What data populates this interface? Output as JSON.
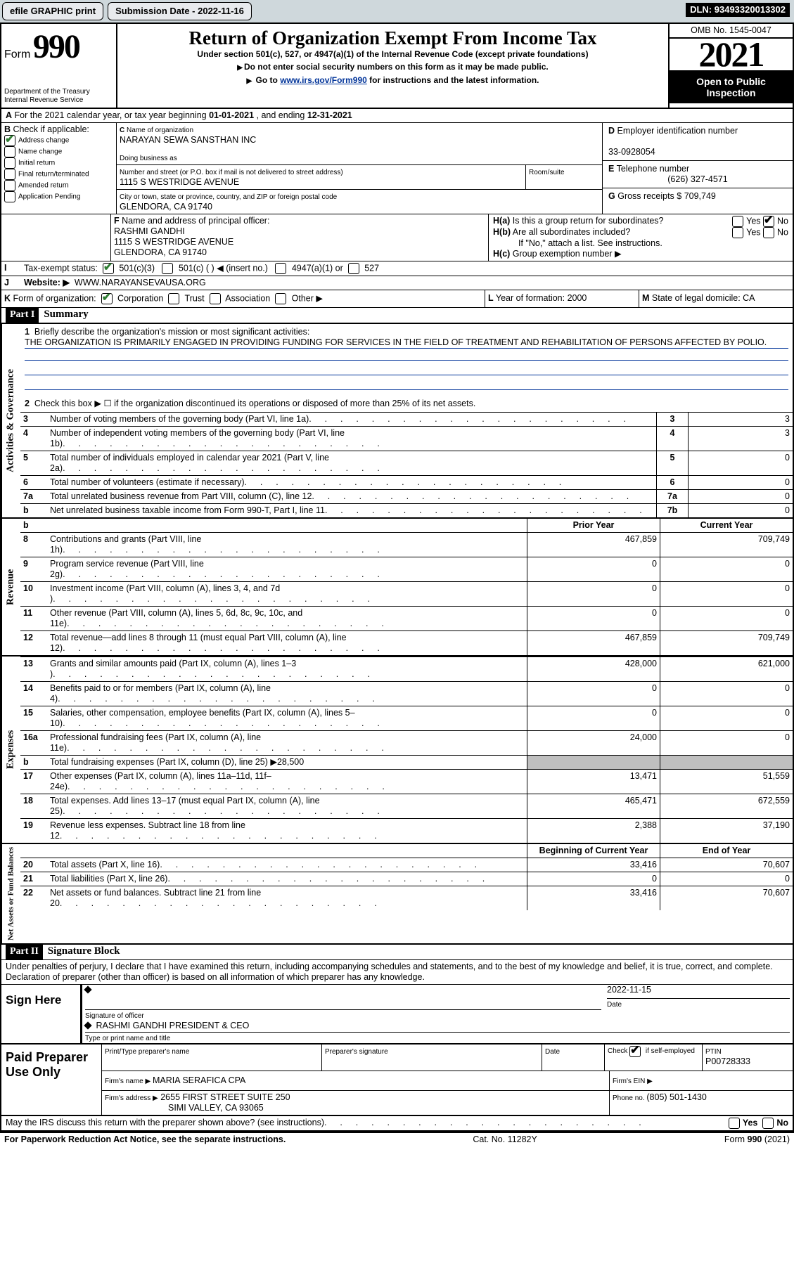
{
  "topbar": {
    "efile": "efile GRAPHIC print",
    "submission_label": "Submission Date - ",
    "submission_date": "2022-11-16",
    "dln_label": "DLN: ",
    "dln": "93493320013302"
  },
  "header": {
    "form_word": "Form",
    "form_number": "990",
    "dept": "Department of the Treasury Internal Revenue Service",
    "title": "Return of Organization Exempt From Income Tax",
    "subtitle": "Under section 501(c), 527, or 4947(a)(1) of the Internal Revenue Code (except private foundations)",
    "note1": "Do not enter social security numbers on this form as it may be made public.",
    "note2_pre": "Go to ",
    "note2_link": "www.irs.gov/Form990",
    "note2_post": " for instructions and the latest information.",
    "omb": "OMB No. 1545-0047",
    "year": "2021",
    "inspection": "Open to Public Inspection"
  },
  "periodA": {
    "text_pre": "For the 2021 calendar year, or tax year beginning ",
    "begin": "01-01-2021",
    "mid": " , and ending ",
    "end": "12-31-2021"
  },
  "boxB": {
    "label": "Check if applicable:",
    "items": [
      {
        "label": "Address change",
        "checked": true
      },
      {
        "label": "Name change",
        "checked": false
      },
      {
        "label": "Initial return",
        "checked": false
      },
      {
        "label": "Final return/terminated",
        "checked": false
      },
      {
        "label": "Amended return",
        "checked": false
      },
      {
        "label": "Application Pending",
        "checked": false
      }
    ]
  },
  "boxC": {
    "name_label": "Name of organization",
    "name": "NARAYAN SEWA SANSTHAN INC",
    "dba_label": "Doing business as",
    "dba": "",
    "street_label": "Number and street (or P.O. box if mail is not delivered to street address)",
    "street": "1115 S WESTRIDGE AVENUE",
    "room_label": "Room/suite",
    "city_label": "City or town, state or province, country, and ZIP or foreign postal code",
    "city": "GLENDORA, CA  91740"
  },
  "boxD": {
    "label": "Employer identification number",
    "value": "33-0928054"
  },
  "boxE": {
    "label": "Telephone number",
    "value": "(626) 327-4571"
  },
  "boxG": {
    "label": "Gross receipts $ ",
    "value": "709,749"
  },
  "boxF": {
    "label": "Name and address of principal officer:",
    "name": "RASHMI GANDHI",
    "street": "1115 S WESTRIDGE AVENUE",
    "city": "GLENDORA, CA  91740"
  },
  "boxH": {
    "a_label": "Is this a group return for subordinates?",
    "a_no": true,
    "b_label": "Are all subordinates included?",
    "b_note": "If \"No,\" attach a list. See instructions.",
    "c_label": "Group exemption number ▶"
  },
  "boxI": {
    "label": "Tax-exempt status:",
    "c3_checked": true,
    "options": [
      "501(c)(3)",
      "501(c) (  ) ◀ (insert no.)",
      "4947(a)(1) or",
      "527"
    ]
  },
  "boxJ": {
    "label": "Website: ▶",
    "value": "WWW.NARAYANSEVAUSA.ORG"
  },
  "boxK": {
    "label": "Form of organization:",
    "corp_checked": true,
    "options": [
      "Corporation",
      "Trust",
      "Association",
      "Other ▶"
    ]
  },
  "boxL": {
    "label": "Year of formation: ",
    "value": "2000"
  },
  "boxM": {
    "label": "State of legal domicile: ",
    "value": "CA"
  },
  "part1": {
    "header": "Part I",
    "title": "Summary",
    "line1_label": "Briefly describe the organization's mission or most significant activities:",
    "line1_text": "THE ORGANIZATION IS PRIMARILY ENGAGED IN PROVIDING FUNDING FOR SERVICES IN THE FIELD OF TREATMENT AND REHABILITATION OF PERSONS AFFECTED BY POLIO.",
    "line2": "Check this box ▶ ☐ if the organization discontinued its operations or disposed of more than 25% of its net assets.",
    "gov_lines": [
      {
        "n": "3",
        "label": "Number of voting members of the governing body (Part VI, line 1a)",
        "box": "3",
        "val": "3"
      },
      {
        "n": "4",
        "label": "Number of independent voting members of the governing body (Part VI, line 1b)",
        "box": "4",
        "val": "3"
      },
      {
        "n": "5",
        "label": "Total number of individuals employed in calendar year 2021 (Part V, line 2a)",
        "box": "5",
        "val": "0"
      },
      {
        "n": "6",
        "label": "Total number of volunteers (estimate if necessary)",
        "box": "6",
        "val": "0"
      },
      {
        "n": "7a",
        "label": "Total unrelated business revenue from Part VIII, column (C), line 12",
        "box": "7a",
        "val": "0"
      },
      {
        "n": "b",
        "label": "Net unrelated business taxable income from Form 990-T, Part I, line 11",
        "box": "7b",
        "val": "0"
      }
    ],
    "prior_label": "Prior Year",
    "current_label": "Current Year",
    "rev_lines": [
      {
        "n": "8",
        "label": "Contributions and grants (Part VIII, line 1h)",
        "prior": "467,859",
        "curr": "709,749"
      },
      {
        "n": "9",
        "label": "Program service revenue (Part VIII, line 2g)",
        "prior": "0",
        "curr": "0"
      },
      {
        "n": "10",
        "label": "Investment income (Part VIII, column (A), lines 3, 4, and 7d )",
        "prior": "0",
        "curr": "0"
      },
      {
        "n": "11",
        "label": "Other revenue (Part VIII, column (A), lines 5, 6d, 8c, 9c, 10c, and 11e)",
        "prior": "0",
        "curr": "0"
      },
      {
        "n": "12",
        "label": "Total revenue—add lines 8 through 11 (must equal Part VIII, column (A), line 12)",
        "prior": "467,859",
        "curr": "709,749"
      }
    ],
    "exp_lines": [
      {
        "n": "13",
        "label": "Grants and similar amounts paid (Part IX, column (A), lines 1–3 )",
        "prior": "428,000",
        "curr": "621,000"
      },
      {
        "n": "14",
        "label": "Benefits paid to or for members (Part IX, column (A), line 4)",
        "prior": "0",
        "curr": "0"
      },
      {
        "n": "15",
        "label": "Salaries, other compensation, employee benefits (Part IX, column (A), lines 5–10)",
        "prior": "0",
        "curr": "0"
      },
      {
        "n": "16a",
        "label": "Professional fundraising fees (Part IX, column (A), line 11e)",
        "prior": "24,000",
        "curr": "0"
      },
      {
        "n": "b",
        "label": "Total fundraising expenses (Part IX, column (D), line 25) ▶28,500",
        "prior": "",
        "curr": "",
        "shaded": true
      },
      {
        "n": "17",
        "label": "Other expenses (Part IX, column (A), lines 11a–11d, 11f–24e)",
        "prior": "13,471",
        "curr": "51,559"
      },
      {
        "n": "18",
        "label": "Total expenses. Add lines 13–17 (must equal Part IX, column (A), line 25)",
        "prior": "465,471",
        "curr": "672,559"
      },
      {
        "n": "19",
        "label": "Revenue less expenses. Subtract line 18 from line 12",
        "prior": "2,388",
        "curr": "37,190"
      }
    ],
    "begin_label": "Beginning of Current Year",
    "end_label": "End of Year",
    "net_lines": [
      {
        "n": "20",
        "label": "Total assets (Part X, line 16)",
        "prior": "33,416",
        "curr": "70,607"
      },
      {
        "n": "21",
        "label": "Total liabilities (Part X, line 26)",
        "prior": "0",
        "curr": "0"
      },
      {
        "n": "22",
        "label": "Net assets or fund balances. Subtract line 21 from line 20",
        "prior": "33,416",
        "curr": "70,607"
      }
    ],
    "vtabs": {
      "gov": "Activities & Governance",
      "rev": "Revenue",
      "exp": "Expenses",
      "net": "Net Assets or Fund Balances"
    }
  },
  "part2": {
    "header": "Part II",
    "title": "Signature Block",
    "jurat": "Under penalties of perjury, I declare that I have examined this return, including accompanying schedules and statements, and to the best of my knowledge and belief, it is true, correct, and complete. Declaration of preparer (other than officer) is based on all information of which preparer has any knowledge.",
    "sign_here": "Sign Here",
    "sig_officer": "Signature of officer",
    "sig_date": "2022-11-15",
    "date_lbl": "Date",
    "officer_name": "RASHMI GANDHI  PRESIDENT & CEO",
    "name_title_lbl": "Type or print name and title",
    "paid": "Paid Preparer Use Only",
    "prep_name_lbl": "Print/Type preparer's name",
    "prep_sig_lbl": "Preparer's signature",
    "check_self": "Check ☑ if self-employed",
    "ptin_lbl": "PTIN",
    "ptin": "P00728333",
    "firm_name_lbl": "Firm's name   ▶ ",
    "firm_name": "MARIA SERAFICA CPA",
    "firm_ein_lbl": "Firm's EIN ▶",
    "firm_addr_lbl": "Firm's address ▶",
    "firm_addr": "2655 FIRST STREET SUITE 250",
    "firm_city": "SIMI VALLEY, CA  93065",
    "phone_lbl": "Phone no. ",
    "phone": "(805) 501-1430",
    "discuss": "May the IRS discuss this return with the preparer shown above? (see instructions)",
    "paperwork": "For Paperwork Reduction Act Notice, see the separate instructions.",
    "cat": "Cat. No. 11282Y",
    "form_foot": "Form 990 (2021)"
  }
}
